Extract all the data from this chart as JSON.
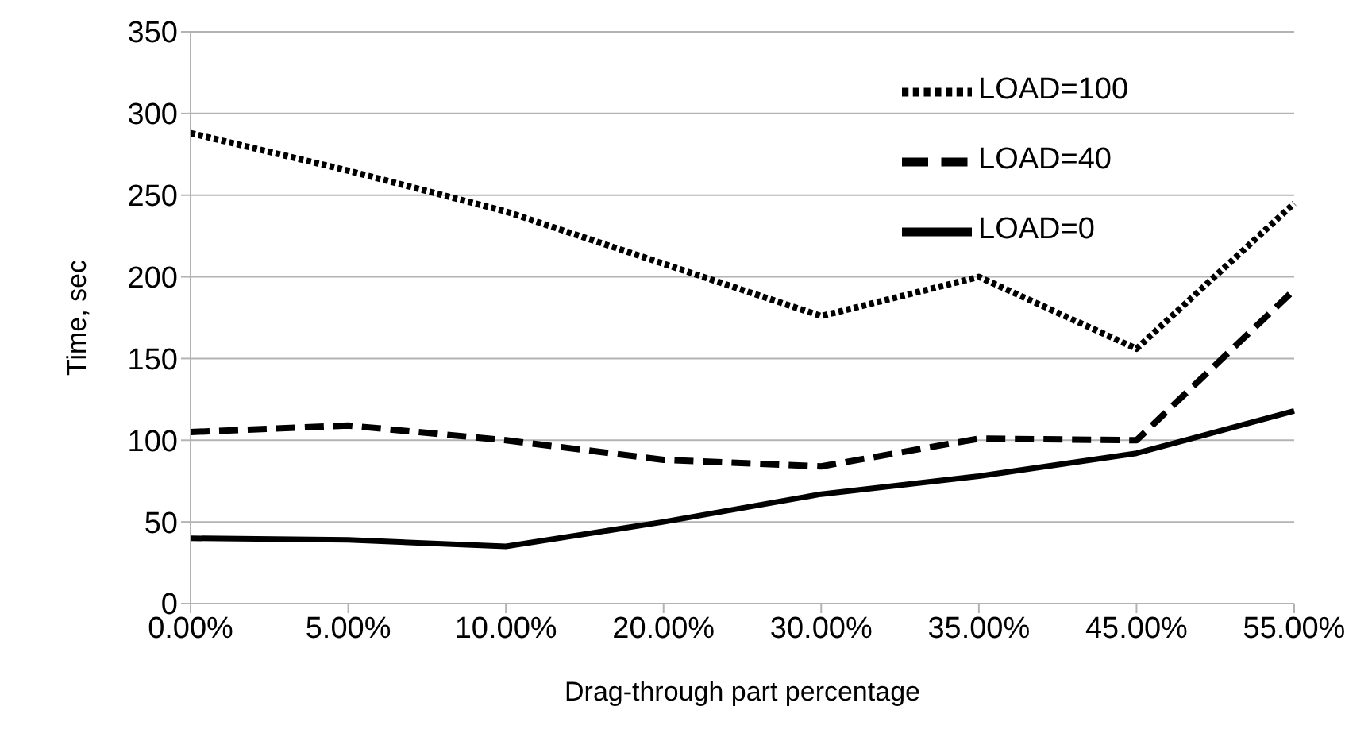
{
  "chart_data": {
    "type": "line",
    "xlabel": "Drag-through part percentage",
    "ylabel": "Time, sec",
    "categories": [
      "0.00%",
      "5.00%",
      "10.00%",
      "20.00%",
      "30.00%",
      "35.00%",
      "45.00%",
      "55.00%"
    ],
    "series": [
      {
        "name": "LOAD=100",
        "color": "#000000",
        "line_style": "dotted",
        "values": [
          288,
          265,
          240,
          208,
          176,
          200,
          156,
          245
        ]
      },
      {
        "name": "LOAD=40",
        "color": "#000000",
        "line_style": "dashed",
        "values": [
          105,
          109,
          100,
          88,
          84,
          101,
          100,
          192
        ]
      },
      {
        "name": "LOAD=0",
        "color": "#000000",
        "line_style": "solid",
        "values": [
          40,
          39,
          35,
          50,
          67,
          78,
          92,
          118
        ]
      }
    ],
    "ylim": [
      0,
      350
    ],
    "yticks": [
      0,
      50,
      100,
      150,
      200,
      250,
      300,
      350
    ],
    "grid": "y",
    "legend": "top right",
    "marker": "none"
  }
}
